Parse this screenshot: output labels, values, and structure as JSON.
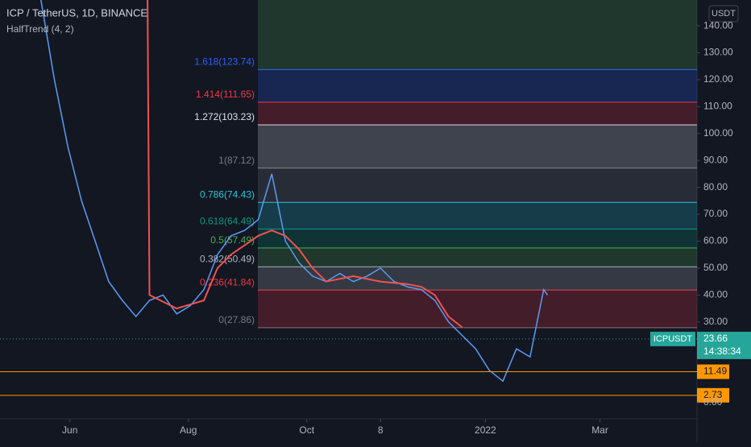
{
  "chart_data": {
    "type": "line",
    "title": "ICP / TetherUS, 1D, BINANCE",
    "subtitle": "HalfTrend (4, 2)",
    "currency": "USDT",
    "symbol": "ICPUSDT",
    "countdown": "14:38:34",
    "xlim": [
      -14,
      345
    ],
    "xticks": [
      {
        "value": 22,
        "label": "Jun"
      },
      {
        "value": 83,
        "label": "Aug"
      },
      {
        "value": 144,
        "label": "Oct"
      },
      {
        "value": 182,
        "label": "8"
      },
      {
        "value": 236,
        "label": "2022"
      },
      {
        "value": 295,
        "label": "Mar"
      }
    ],
    "ylim": [
      -6,
      149.6
    ],
    "yticks": [
      {
        "value": 0,
        "label": "0.00"
      },
      {
        "value": 30,
        "label": "30.00"
      },
      {
        "value": 40,
        "label": "40.00"
      },
      {
        "value": 50,
        "label": "50.00"
      },
      {
        "value": 60,
        "label": "60.00"
      },
      {
        "value": 70,
        "label": "70.00"
      },
      {
        "value": 80,
        "label": "80.00"
      },
      {
        "value": 90,
        "label": "90.00"
      },
      {
        "value": 100,
        "label": "100.00"
      },
      {
        "value": 110,
        "label": "110.00"
      },
      {
        "value": 120,
        "label": "120.00"
      },
      {
        "value": 130,
        "label": "130.00"
      },
      {
        "value": 140,
        "label": "140.00"
      }
    ],
    "series": [
      {
        "name": "ICPUSDT",
        "color": "#5b9cf6",
        "x": [
          7,
          14,
          21,
          28,
          35,
          42,
          49,
          56,
          63,
          70,
          77,
          84,
          91,
          98,
          105,
          112,
          119,
          126,
          133,
          140,
          147,
          154,
          161,
          168,
          175,
          182,
          189,
          196,
          203,
          210,
          217,
          224,
          231,
          238,
          245,
          252,
          259,
          266,
          268
        ],
        "values": [
          150,
          120,
          95,
          75,
          60,
          45,
          38,
          32,
          38,
          40,
          33,
          36,
          42,
          55,
          62,
          64,
          68,
          85,
          60,
          52,
          47,
          45,
          48,
          45,
          47,
          50,
          45,
          43,
          42,
          38,
          30,
          25,
          20,
          12,
          8,
          20,
          17,
          42,
          40
        ]
      },
      {
        "name": "HalfTrend (4, 2)",
        "color": "#f05350",
        "x": [
          56,
          62,
          63,
          77,
          91,
          98,
          105,
          119,
          126,
          133,
          140,
          147,
          154,
          168,
          182,
          196,
          203,
          210,
          217,
          224
        ],
        "values": [
          150,
          150,
          40,
          35,
          38,
          50,
          55,
          62,
          64,
          62,
          57,
          50,
          45,
          47,
          45,
          44,
          43,
          40,
          32,
          28
        ]
      }
    ],
    "fib_levels": [
      {
        "label": "0(27.86)",
        "value": 27.86,
        "color": "#787b86"
      },
      {
        "label": "0.236(41.84)",
        "value": 41.84,
        "color": "#f23645"
      },
      {
        "label": "0.382(50.49)",
        "value": 50.49,
        "color": "#b2b5be"
      },
      {
        "label": "0.5(57.49)",
        "value": 57.49,
        "color": "#4caf50"
      },
      {
        "label": "0.618(64.49)",
        "value": 64.49,
        "color": "#089981"
      },
      {
        "label": "0.786(74.43)",
        "value": 74.43,
        "color": "#26c6da"
      },
      {
        "label": "1(87.12)",
        "value": 87.12,
        "color": "#787b86"
      },
      {
        "label": "1.272(103.23)",
        "value": 103.23,
        "color": "#e0e3eb"
      },
      {
        "label": "1.414(111.65)",
        "value": 111.65,
        "color": "#f23645"
      },
      {
        "label": "1.618(123.74)",
        "value": 123.74,
        "color": "#2962ff"
      }
    ],
    "levels": [
      {
        "value": 11.49,
        "color": "#ff9800"
      },
      {
        "value": 2.73,
        "color": "#ff9800"
      }
    ],
    "last_price": {
      "value": 23.66,
      "color": "#26a69a"
    }
  }
}
